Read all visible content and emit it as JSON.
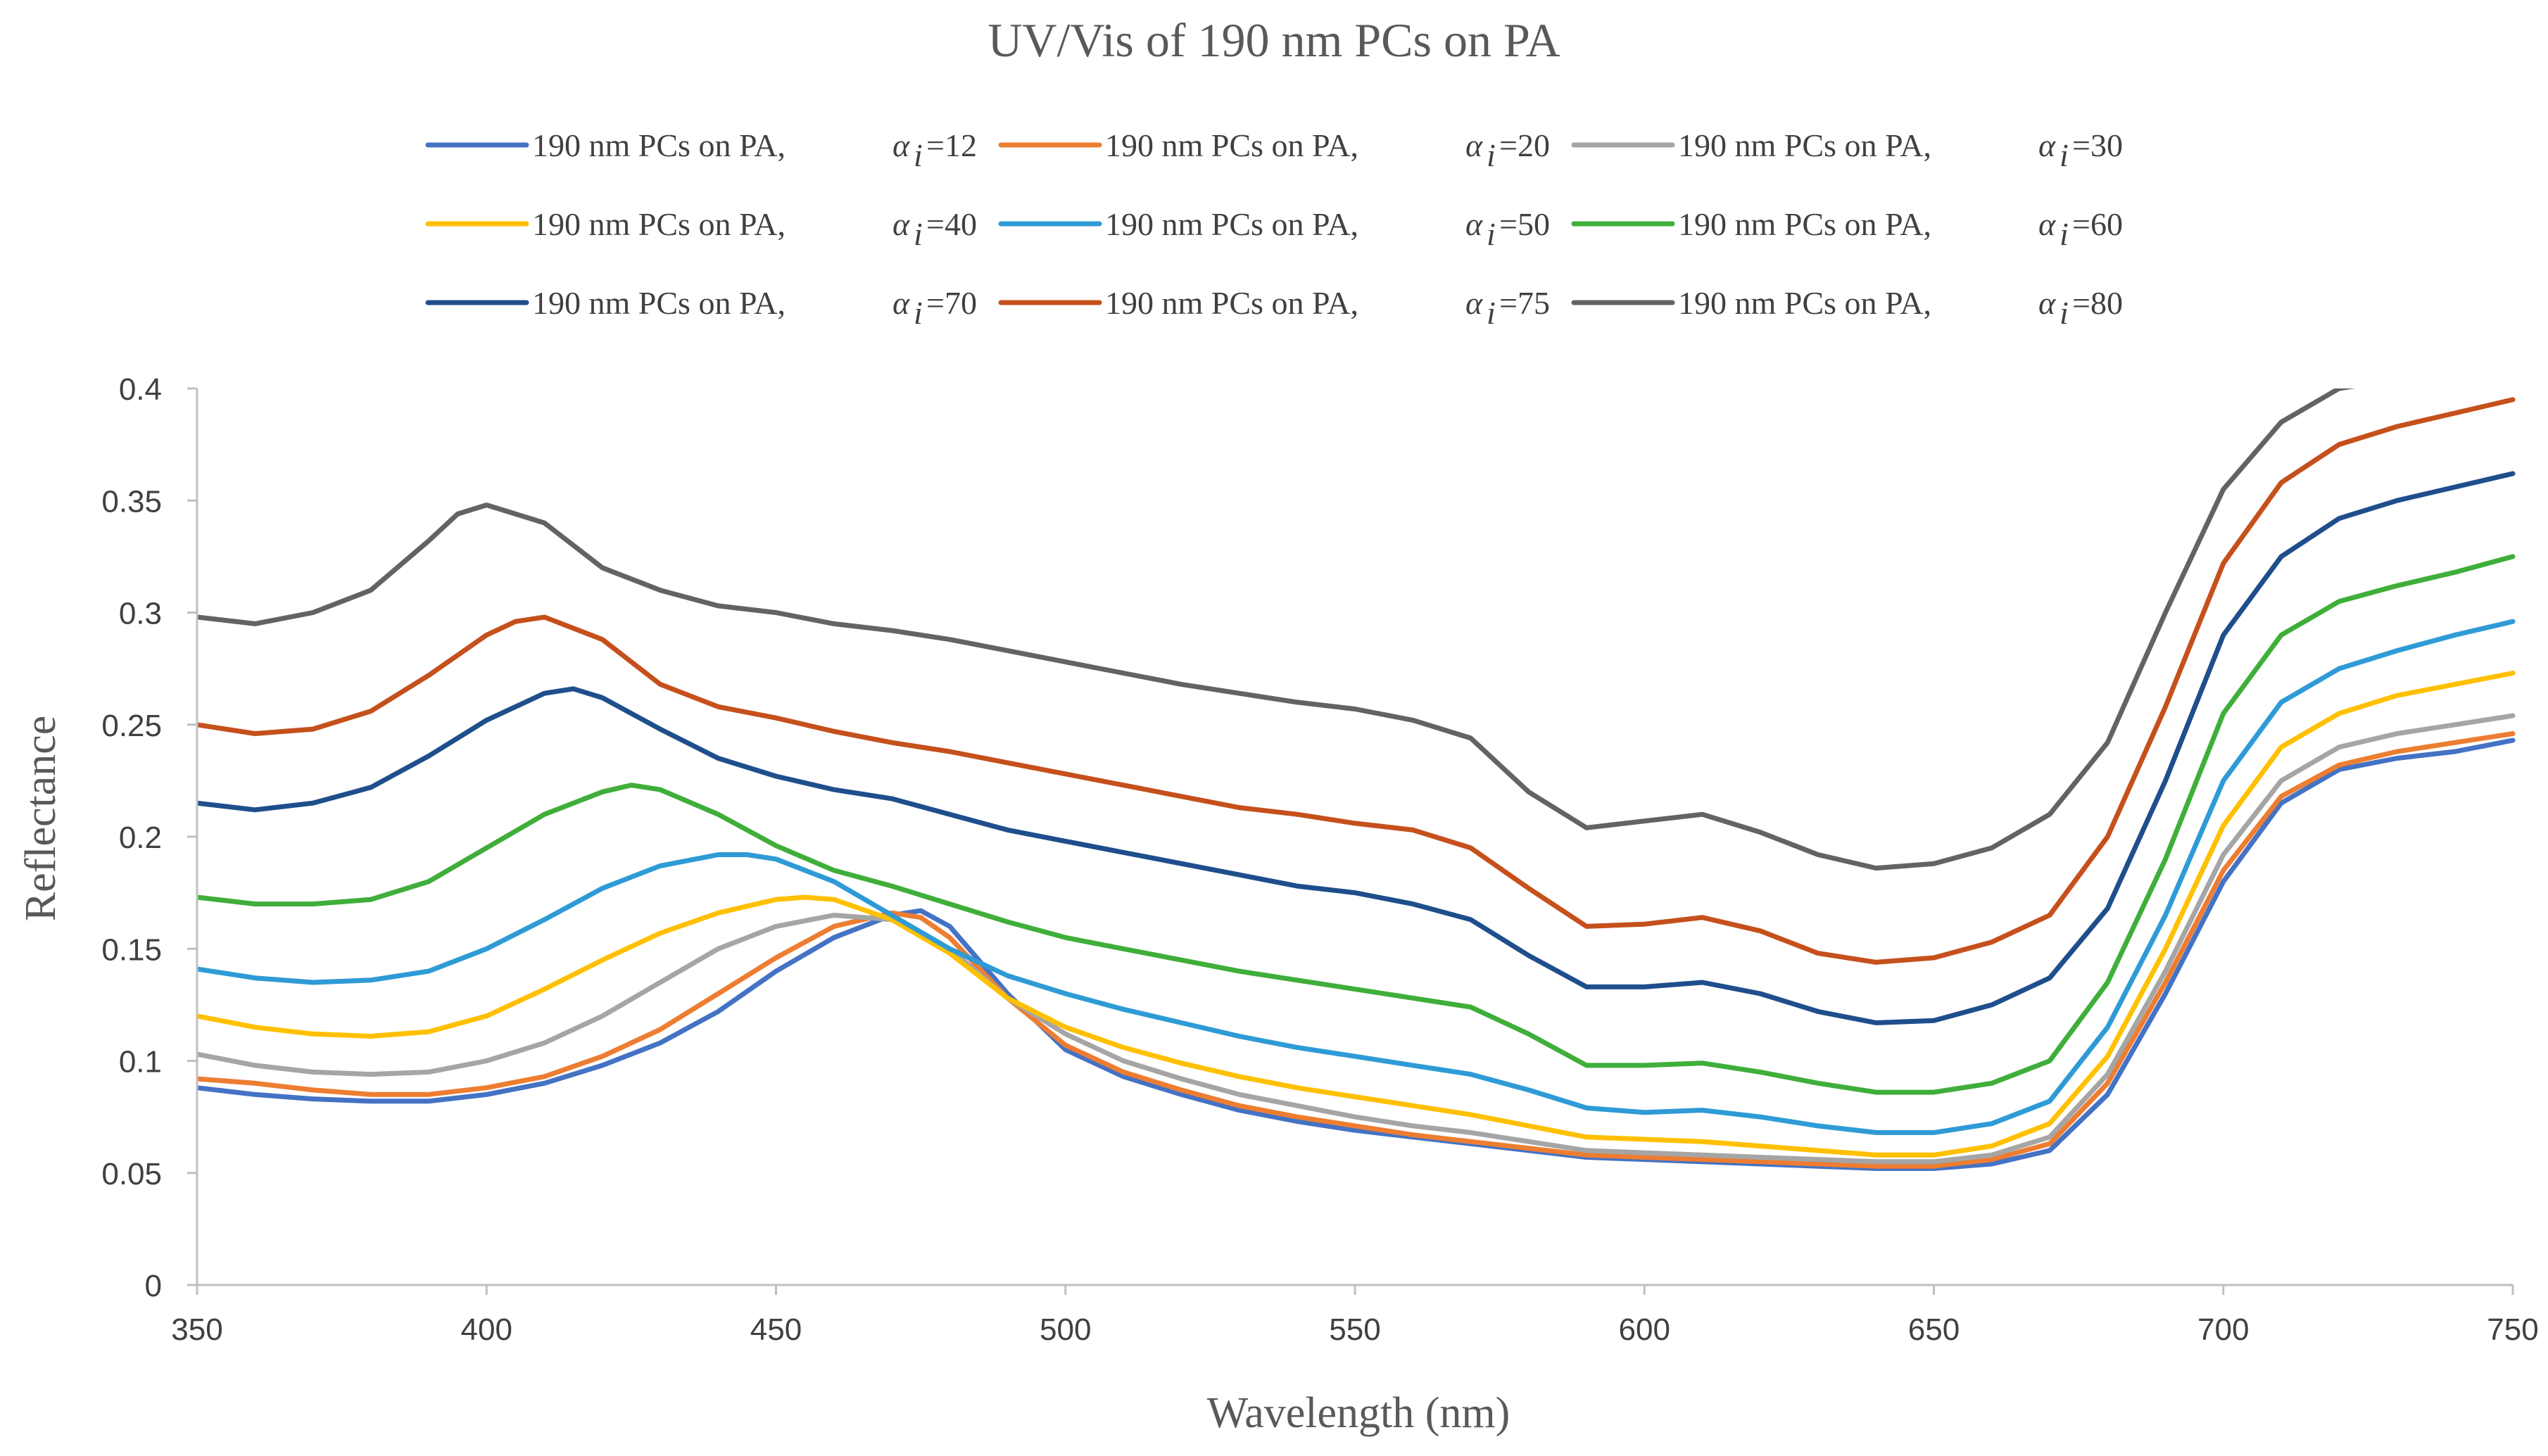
{
  "chart_data": {
    "type": "line",
    "title": "UV/Vis of 190 nm PCs on PA",
    "xlabel": "Wavelength (nm)",
    "ylabel": "Reflectance",
    "xlim": [
      350,
      750
    ],
    "ylim": [
      0,
      0.4
    ],
    "xticks": [
      "350",
      "400",
      "450",
      "500",
      "550",
      "600",
      "650",
      "700",
      "750"
    ],
    "yticks": [
      "0",
      "0.05",
      "0.1",
      "0.15",
      "0.2",
      "0.25",
      "0.3",
      "0.35",
      "0.4"
    ],
    "legend_position": "top",
    "series": [
      {
        "name": "190 nm PCs on PA,",
        "alpha_symbol": "α",
        "alpha_sub": "i",
        "alpha_value": "=12",
        "color": "#4472C4",
        "x": [
          350,
          360,
          370,
          380,
          390,
          400,
          410,
          420,
          430,
          440,
          450,
          460,
          470,
          475,
          480,
          490,
          500,
          510,
          520,
          530,
          540,
          550,
          560,
          570,
          580,
          590,
          600,
          610,
          620,
          630,
          640,
          650,
          660,
          670,
          680,
          690,
          700,
          710,
          720,
          730,
          740,
          750
        ],
        "y": [
          0.088,
          0.085,
          0.083,
          0.082,
          0.082,
          0.085,
          0.09,
          0.098,
          0.108,
          0.122,
          0.14,
          0.155,
          0.165,
          0.167,
          0.16,
          0.13,
          0.105,
          0.093,
          0.085,
          0.078,
          0.073,
          0.069,
          0.066,
          0.063,
          0.06,
          0.057,
          0.056,
          0.055,
          0.054,
          0.053,
          0.052,
          0.052,
          0.054,
          0.06,
          0.085,
          0.13,
          0.18,
          0.215,
          0.23,
          0.235,
          0.238,
          0.243
        ]
      },
      {
        "name": "190 nm PCs on PA,",
        "alpha_symbol": "α",
        "alpha_sub": "i",
        "alpha_value": "=20",
        "color": "#ED7D31",
        "x": [
          350,
          360,
          370,
          380,
          390,
          400,
          410,
          420,
          430,
          440,
          450,
          460,
          470,
          475,
          480,
          490,
          500,
          510,
          520,
          530,
          540,
          550,
          560,
          570,
          580,
          590,
          600,
          610,
          620,
          630,
          640,
          650,
          660,
          670,
          680,
          690,
          700,
          710,
          720,
          730,
          740,
          750
        ],
        "y": [
          0.092,
          0.09,
          0.087,
          0.085,
          0.085,
          0.088,
          0.093,
          0.102,
          0.114,
          0.13,
          0.146,
          0.16,
          0.166,
          0.164,
          0.155,
          0.128,
          0.107,
          0.095,
          0.087,
          0.08,
          0.075,
          0.071,
          0.067,
          0.064,
          0.061,
          0.058,
          0.057,
          0.056,
          0.055,
          0.054,
          0.053,
          0.053,
          0.056,
          0.063,
          0.09,
          0.135,
          0.185,
          0.218,
          0.232,
          0.238,
          0.242,
          0.246
        ]
      },
      {
        "name": "190 nm PCs on PA,",
        "alpha_symbol": "α",
        "alpha_sub": "i",
        "alpha_value": "=30",
        "color": "#A5A5A5",
        "x": [
          350,
          360,
          370,
          380,
          390,
          400,
          410,
          420,
          430,
          440,
          450,
          460,
          470,
          480,
          490,
          500,
          510,
          520,
          530,
          540,
          550,
          560,
          570,
          580,
          590,
          600,
          610,
          620,
          630,
          640,
          650,
          660,
          670,
          680,
          690,
          700,
          710,
          720,
          730,
          740,
          750
        ],
        "y": [
          0.103,
          0.098,
          0.095,
          0.094,
          0.095,
          0.1,
          0.108,
          0.12,
          0.135,
          0.15,
          0.16,
          0.165,
          0.163,
          0.15,
          0.128,
          0.112,
          0.1,
          0.092,
          0.085,
          0.08,
          0.075,
          0.071,
          0.068,
          0.064,
          0.06,
          0.059,
          0.058,
          0.057,
          0.056,
          0.055,
          0.055,
          0.058,
          0.066,
          0.094,
          0.14,
          0.192,
          0.225,
          0.24,
          0.246,
          0.25,
          0.254
        ]
      },
      {
        "name": "190 nm PCs on PA,",
        "alpha_symbol": "α",
        "alpha_sub": "i",
        "alpha_value": "=40",
        "color": "#FFC000",
        "x": [
          350,
          360,
          370,
          380,
          390,
          400,
          410,
          420,
          430,
          440,
          450,
          455,
          460,
          470,
          480,
          490,
          500,
          510,
          520,
          530,
          540,
          550,
          560,
          570,
          580,
          590,
          600,
          610,
          620,
          630,
          640,
          650,
          660,
          670,
          680,
          690,
          700,
          710,
          720,
          730,
          740,
          750
        ],
        "y": [
          0.12,
          0.115,
          0.112,
          0.111,
          0.113,
          0.12,
          0.132,
          0.145,
          0.157,
          0.166,
          0.172,
          0.173,
          0.172,
          0.163,
          0.148,
          0.128,
          0.115,
          0.106,
          0.099,
          0.093,
          0.088,
          0.084,
          0.08,
          0.076,
          0.071,
          0.066,
          0.065,
          0.064,
          0.062,
          0.06,
          0.058,
          0.058,
          0.062,
          0.072,
          0.102,
          0.15,
          0.205,
          0.24,
          0.255,
          0.263,
          0.268,
          0.273
        ]
      },
      {
        "name": "190 nm PCs on PA,",
        "alpha_symbol": "α",
        "alpha_sub": "i",
        "alpha_value": "=50",
        "color": "#2E9BD6",
        "x": [
          350,
          360,
          370,
          380,
          390,
          400,
          410,
          420,
          430,
          440,
          445,
          450,
          460,
          470,
          480,
          490,
          500,
          510,
          520,
          530,
          540,
          550,
          560,
          570,
          580,
          590,
          600,
          610,
          620,
          630,
          640,
          650,
          660,
          670,
          680,
          690,
          700,
          710,
          720,
          730,
          740,
          750
        ],
        "y": [
          0.141,
          0.137,
          0.135,
          0.136,
          0.14,
          0.15,
          0.163,
          0.177,
          0.187,
          0.192,
          0.192,
          0.19,
          0.18,
          0.165,
          0.15,
          0.138,
          0.13,
          0.123,
          0.117,
          0.111,
          0.106,
          0.102,
          0.098,
          0.094,
          0.087,
          0.079,
          0.077,
          0.078,
          0.075,
          0.071,
          0.068,
          0.068,
          0.072,
          0.082,
          0.115,
          0.165,
          0.225,
          0.26,
          0.275,
          0.283,
          0.29,
          0.296
        ]
      },
      {
        "name": "190 nm PCs on PA,",
        "alpha_symbol": "α",
        "alpha_sub": "i",
        "alpha_value": "=60",
        "color": "#3FAE3A",
        "x": [
          350,
          360,
          370,
          380,
          390,
          400,
          410,
          420,
          425,
          430,
          440,
          450,
          460,
          470,
          480,
          490,
          500,
          510,
          520,
          530,
          540,
          550,
          560,
          570,
          580,
          590,
          600,
          610,
          620,
          630,
          640,
          650,
          660,
          670,
          680,
          690,
          700,
          710,
          720,
          730,
          740,
          750
        ],
        "y": [
          0.173,
          0.17,
          0.17,
          0.172,
          0.18,
          0.195,
          0.21,
          0.22,
          0.223,
          0.221,
          0.21,
          0.196,
          0.185,
          0.178,
          0.17,
          0.162,
          0.155,
          0.15,
          0.145,
          0.14,
          0.136,
          0.132,
          0.128,
          0.124,
          0.112,
          0.098,
          0.098,
          0.099,
          0.095,
          0.09,
          0.086,
          0.086,
          0.09,
          0.1,
          0.135,
          0.19,
          0.255,
          0.29,
          0.305,
          0.312,
          0.318,
          0.325
        ]
      },
      {
        "name": "190 nm PCs on PA,",
        "alpha_symbol": "α",
        "alpha_sub": "i",
        "alpha_value": "=70",
        "color": "#1F4E8C",
        "x": [
          350,
          360,
          370,
          380,
          390,
          400,
          410,
          415,
          420,
          430,
          440,
          450,
          460,
          470,
          480,
          490,
          500,
          510,
          520,
          530,
          540,
          550,
          560,
          570,
          580,
          590,
          600,
          610,
          620,
          630,
          640,
          650,
          660,
          670,
          680,
          690,
          700,
          710,
          720,
          730,
          740,
          750
        ],
        "y": [
          0.215,
          0.212,
          0.215,
          0.222,
          0.236,
          0.252,
          0.264,
          0.266,
          0.262,
          0.248,
          0.235,
          0.227,
          0.221,
          0.217,
          0.21,
          0.203,
          0.198,
          0.193,
          0.188,
          0.183,
          0.178,
          0.175,
          0.17,
          0.163,
          0.147,
          0.133,
          0.133,
          0.135,
          0.13,
          0.122,
          0.117,
          0.118,
          0.125,
          0.137,
          0.168,
          0.225,
          0.29,
          0.325,
          0.342,
          0.35,
          0.356,
          0.362
        ]
      },
      {
        "name": "190 nm PCs on PA,",
        "alpha_symbol": "α",
        "alpha_sub": "i",
        "alpha_value": "=75",
        "color": "#C5501C",
        "x": [
          350,
          360,
          370,
          380,
          390,
          400,
          405,
          410,
          420,
          430,
          440,
          450,
          460,
          470,
          480,
          490,
          500,
          510,
          520,
          530,
          540,
          550,
          560,
          570,
          580,
          590,
          600,
          610,
          620,
          630,
          640,
          650,
          660,
          670,
          680,
          690,
          700,
          710,
          720,
          730,
          740,
          750
        ],
        "y": [
          0.25,
          0.246,
          0.248,
          0.256,
          0.272,
          0.29,
          0.296,
          0.298,
          0.288,
          0.268,
          0.258,
          0.253,
          0.247,
          0.242,
          0.238,
          0.233,
          0.228,
          0.223,
          0.218,
          0.213,
          0.21,
          0.206,
          0.203,
          0.195,
          0.177,
          0.16,
          0.161,
          0.164,
          0.158,
          0.148,
          0.144,
          0.146,
          0.153,
          0.165,
          0.2,
          0.258,
          0.322,
          0.358,
          0.375,
          0.383,
          0.389,
          0.395
        ]
      },
      {
        "name": "190 nm PCs on PA,",
        "alpha_symbol": "α",
        "alpha_sub": "i",
        "alpha_value": "=80",
        "color": "#636363",
        "x": [
          350,
          360,
          370,
          380,
          390,
          395,
          400,
          410,
          420,
          430,
          440,
          450,
          460,
          470,
          480,
          490,
          500,
          510,
          520,
          530,
          540,
          550,
          560,
          570,
          580,
          590,
          600,
          610,
          620,
          630,
          640,
          650,
          660,
          670,
          680,
          690,
          700,
          710,
          720,
          725
        ],
        "y": [
          0.298,
          0.295,
          0.3,
          0.31,
          0.332,
          0.344,
          0.348,
          0.34,
          0.32,
          0.31,
          0.303,
          0.3,
          0.295,
          0.292,
          0.288,
          0.283,
          0.278,
          0.273,
          0.268,
          0.264,
          0.26,
          0.257,
          0.252,
          0.244,
          0.22,
          0.204,
          0.207,
          0.21,
          0.202,
          0.192,
          0.186,
          0.188,
          0.195,
          0.21,
          0.242,
          0.3,
          0.355,
          0.385,
          0.4,
          0.402
        ]
      }
    ]
  }
}
